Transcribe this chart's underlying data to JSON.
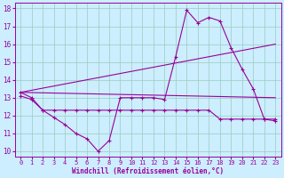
{
  "xlabel": "Windchill (Refroidissement éolien,°C)",
  "bg_color": "#cceeff",
  "line_color": "#990099",
  "xlim": [
    -0.5,
    23.5
  ],
  "ylim": [
    9.7,
    18.3
  ],
  "xticks": [
    0,
    1,
    2,
    3,
    4,
    5,
    6,
    7,
    8,
    9,
    10,
    11,
    12,
    13,
    14,
    15,
    16,
    17,
    18,
    19,
    20,
    21,
    22,
    23
  ],
  "yticks": [
    10,
    11,
    12,
    13,
    14,
    15,
    16,
    17,
    18
  ],
  "series1_x": [
    0,
    1,
    2,
    3,
    4,
    5,
    6,
    7,
    8,
    9,
    10,
    11,
    12,
    13,
    14,
    15,
    16,
    17,
    18,
    19,
    20,
    21,
    22,
    23
  ],
  "series1_y": [
    13.3,
    13.0,
    12.3,
    11.9,
    11.5,
    11.0,
    10.7,
    10.0,
    10.6,
    13.0,
    13.0,
    13.0,
    13.0,
    12.9,
    15.3,
    17.9,
    17.2,
    17.5,
    17.3,
    15.8,
    14.6,
    13.5,
    11.8,
    11.7
  ],
  "series2_x": [
    0,
    1,
    2,
    3,
    4,
    5,
    6,
    7,
    8,
    9,
    10,
    11,
    12,
    13,
    14,
    15,
    16,
    17,
    18,
    19,
    20,
    21,
    22,
    23
  ],
  "series2_y": [
    13.1,
    12.9,
    12.3,
    12.3,
    12.3,
    12.3,
    12.3,
    12.3,
    12.3,
    12.3,
    12.3,
    12.3,
    12.3,
    12.3,
    12.3,
    12.3,
    12.3,
    12.3,
    11.8,
    11.8,
    11.8,
    11.8,
    11.8,
    11.8
  ],
  "series3_x": [
    0,
    23
  ],
  "series3_y": [
    13.3,
    13.0
  ],
  "series4_x": [
    0,
    23
  ],
  "series4_y": [
    13.3,
    16.0
  ],
  "grid_color": "#99ccbb",
  "marker_size": 3.0,
  "line_width": 0.8
}
